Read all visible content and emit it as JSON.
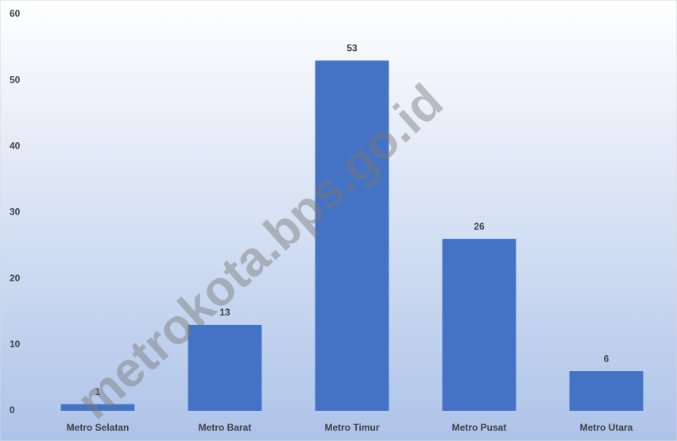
{
  "chart_data": {
    "type": "bar",
    "categories": [
      "Metro Selatan",
      "Metro Barat",
      "Metro Timur",
      "Metro Pusat",
      "Metro Utara"
    ],
    "values": [
      1,
      13,
      53,
      26,
      6
    ],
    "color": "#4472c4",
    "ylim": [
      0,
      60
    ],
    "yticks": [
      0,
      10,
      20,
      30,
      40,
      50,
      60
    ],
    "grid": false,
    "watermark": "metrokota.bps.go.id"
  }
}
